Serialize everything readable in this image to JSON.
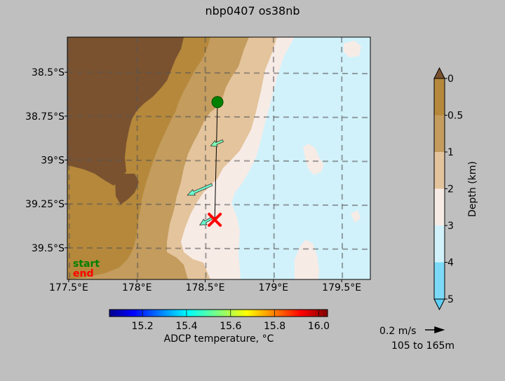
{
  "title": "nbp0407 os38nb",
  "map": {
    "lon_ticks": [
      {
        "lon": 177.5,
        "label": "177.5°E"
      },
      {
        "lon": 178.0,
        "label": "178°E"
      },
      {
        "lon": 178.5,
        "label": "178.5°E"
      },
      {
        "lon": 179.0,
        "label": "179°E"
      },
      {
        "lon": 179.5,
        "label": "179.5°E"
      }
    ],
    "lat_ticks": [
      {
        "lat": -38.5,
        "label": "38.5°S"
      },
      {
        "lat": -38.75,
        "label": "38.75°S"
      },
      {
        "lat": -39.0,
        "label": "39°S"
      },
      {
        "lat": -39.25,
        "label": "39.25°S"
      },
      {
        "lat": -39.5,
        "label": "39.5°S"
      }
    ],
    "lon_range": [
      177.49,
      179.71
    ],
    "lat_range": [
      -39.68,
      -38.3
    ],
    "grid": true,
    "start_label": "start",
    "end_label": "end",
    "start_color": "#008000",
    "end_color": "#ff0000",
    "track": {
      "start": {
        "lon": 178.59,
        "lat": -38.67
      },
      "end": {
        "lon": 178.57,
        "lat": -39.34
      }
    },
    "vectors": [
      {
        "lon": 178.63,
        "lat": -38.89,
        "dlon": -0.09,
        "dlat": -0.03,
        "color": "#7fffb4"
      },
      {
        "lon": 178.55,
        "lat": -39.14,
        "dlon": -0.18,
        "dlat": -0.06,
        "color": "#6fffd0"
      },
      {
        "lon": 178.55,
        "lat": -39.33,
        "dlon": -0.09,
        "dlat": -0.04,
        "color": "#66ffcc"
      }
    ]
  },
  "depth_colorbar": {
    "label": "Depth (km)",
    "ticks": [
      "0",
      "0.5",
      "1",
      "2",
      "3",
      "4",
      "5"
    ],
    "colors": [
      "#b5883b",
      "#c39c5e",
      "#e4c49c",
      "#f7ebe6",
      "#d1f2fb",
      "#7cdaf7"
    ],
    "extend_top_color": "#7a5230",
    "extend_bottom_color": "#5ecff5"
  },
  "temp_colorbar": {
    "label": "ADCP temperature, °C",
    "ticks": [
      "15.2",
      "15.4",
      "15.6",
      "15.8",
      "16.0"
    ],
    "tick_values": [
      15.2,
      15.4,
      15.6,
      15.8,
      16.0
    ],
    "range": [
      15.05,
      16.04
    ]
  },
  "vector_key": {
    "speed_label": "0.2 m/s",
    "depth_range_label": "105 to 165m"
  }
}
